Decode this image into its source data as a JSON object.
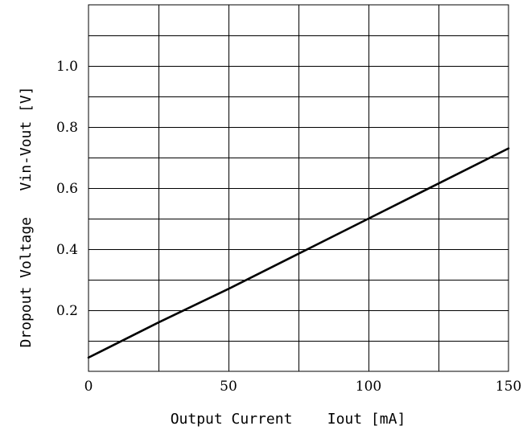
{
  "chart_data": {
    "type": "line",
    "title": "",
    "xlabel": "Output Current    Iout [mA]",
    "ylabel": "Dropout Voltage   Vin-Vout [V]",
    "xlim": [
      0,
      150
    ],
    "ylim": [
      0,
      1.2
    ],
    "grid": true,
    "x_ticks": [
      0,
      50,
      100,
      150
    ],
    "x_tick_labels": [
      "0",
      "50",
      "100",
      "150"
    ],
    "x_grid_step": 25,
    "y_ticks": [
      0.2,
      0.4,
      0.6,
      0.8,
      1.0
    ],
    "y_tick_labels": [
      "0.2",
      "0.4",
      "0.6",
      "0.8",
      "1.0"
    ],
    "y_grid_step": 0.1,
    "series": [
      {
        "x": [
          0,
          25,
          50,
          75,
          100,
          125,
          150
        ],
        "y": [
          0.045,
          0.16,
          0.27,
          0.385,
          0.5,
          0.615,
          0.73
        ]
      }
    ],
    "colors": {
      "line": "#000000",
      "grid": "#000000",
      "background": "#ffffff"
    }
  }
}
